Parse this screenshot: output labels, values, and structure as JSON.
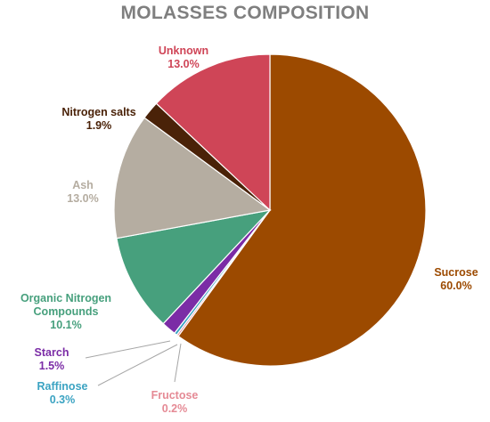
{
  "chart_data": {
    "type": "pie",
    "title": "MOLASSES COMPOSITION",
    "slices": [
      {
        "label": "Sucrose",
        "value": 60.0,
        "pct": "60.0%",
        "color": "#9c4a00"
      },
      {
        "label": "Fructose",
        "value": 0.2,
        "pct": "0.2%",
        "color": "#e58a95"
      },
      {
        "label": "Raffinose",
        "value": 0.3,
        "pct": "0.3%",
        "color": "#3ba3c2"
      },
      {
        "label": "Starch",
        "value": 1.5,
        "pct": "1.5%",
        "color": "#7b2ca6"
      },
      {
        "label": "Organic Nitrogen Compounds",
        "value": 10.1,
        "pct": "10.1%",
        "color": "#47a07d"
      },
      {
        "label": "Ash",
        "value": 13.0,
        "pct": "13.0%",
        "color": "#b5ada1"
      },
      {
        "label": "Nitrogen salts",
        "value": 1.9,
        "pct": "1.9%",
        "color": "#4a2208"
      },
      {
        "label": "Unknown",
        "value": 13.0,
        "pct": "13.0%",
        "color": "#cf4557"
      }
    ],
    "start": "12 o'clock",
    "direction": "clockwise",
    "legend": "none (data labels beside slices)"
  }
}
